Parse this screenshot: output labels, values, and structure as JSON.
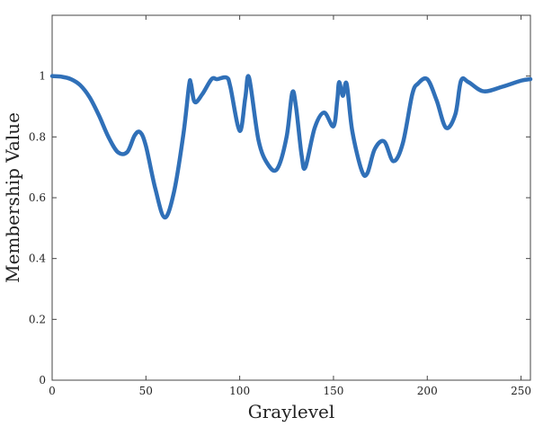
{
  "chart_data": {
    "type": "line",
    "title": "",
    "xlabel": "Graylevel",
    "ylabel": "Membership Value",
    "xlim": [
      0,
      255
    ],
    "ylim": [
      0,
      1.2
    ],
    "xticks": [
      0,
      50,
      100,
      150,
      200,
      250
    ],
    "yticks": [
      0,
      0.2,
      0.4,
      0.6,
      0.8,
      1
    ],
    "xtick_labels": [
      "0",
      "50",
      "100",
      "150",
      "200",
      "250"
    ],
    "ytick_labels": [
      "0",
      "0.2",
      "0.4",
      "0.6",
      "0.8",
      "1"
    ],
    "grid": false,
    "legend": "none",
    "color": "#3070B8",
    "series": [
      {
        "x": [
          0,
          5,
          10,
          15,
          20,
          25,
          30,
          35,
          40,
          44,
          47,
          50,
          55,
          60,
          65,
          70,
          73,
          74,
          76,
          80,
          85,
          88,
          93,
          95,
          100,
          103,
          105,
          110,
          115,
          120,
          125,
          128,
          130,
          133,
          135,
          140,
          145,
          150,
          152,
          153,
          155,
          157,
          160,
          165,
          168,
          172,
          177,
          182,
          187,
          192,
          195,
          200,
          205,
          210,
          215,
          218,
          222,
          230,
          240,
          250,
          255
        ],
        "y": [
          1.0,
          0.998,
          0.99,
          0.97,
          0.93,
          0.87,
          0.8,
          0.75,
          0.75,
          0.805,
          0.815,
          0.77,
          0.63,
          0.535,
          0.62,
          0.81,
          0.97,
          0.975,
          0.915,
          0.94,
          0.99,
          0.99,
          0.995,
          0.965,
          0.82,
          0.93,
          0.995,
          0.79,
          0.71,
          0.695,
          0.8,
          0.945,
          0.9,
          0.74,
          0.7,
          0.83,
          0.88,
          0.835,
          0.92,
          0.98,
          0.935,
          0.975,
          0.82,
          0.69,
          0.68,
          0.76,
          0.785,
          0.72,
          0.78,
          0.94,
          0.975,
          0.99,
          0.92,
          0.83,
          0.875,
          0.985,
          0.98,
          0.95,
          0.965,
          0.985,
          0.99
        ]
      }
    ]
  }
}
